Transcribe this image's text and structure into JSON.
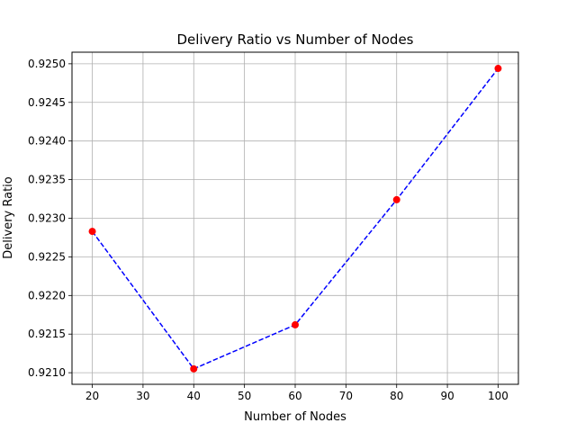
{
  "chart_data": {
    "type": "line",
    "title": "Delivery Ratio vs Number of Nodes",
    "xlabel": "Number of Nodes",
    "ylabel": "Delivery Ratio",
    "x": [
      20,
      40,
      60,
      80,
      100
    ],
    "series": [
      {
        "values": [
          0.92283,
          0.92105,
          0.92162,
          0.92324,
          0.92494
        ],
        "line_color": "#0000ff",
        "line_style": "dashed",
        "marker_color": "#ff0000",
        "marker": "circle"
      }
    ],
    "xlim": [
      16,
      104
    ],
    "ylim": [
      0.92085,
      0.92515
    ],
    "xticks": [
      20,
      30,
      40,
      50,
      60,
      70,
      80,
      90,
      100
    ],
    "xtick_labels": [
      "20",
      "30",
      "40",
      "50",
      "60",
      "70",
      "80",
      "90",
      "100"
    ],
    "yticks": [
      0.921,
      0.9215,
      0.922,
      0.9225,
      0.923,
      0.9235,
      0.924,
      0.9245,
      0.925
    ],
    "ytick_labels": [
      "0.9210",
      "0.9215",
      "0.9220",
      "0.9225",
      "0.9230",
      "0.9235",
      "0.9240",
      "0.9245",
      "0.9250"
    ],
    "grid": true,
    "grid_color": "#b0b0b0"
  }
}
